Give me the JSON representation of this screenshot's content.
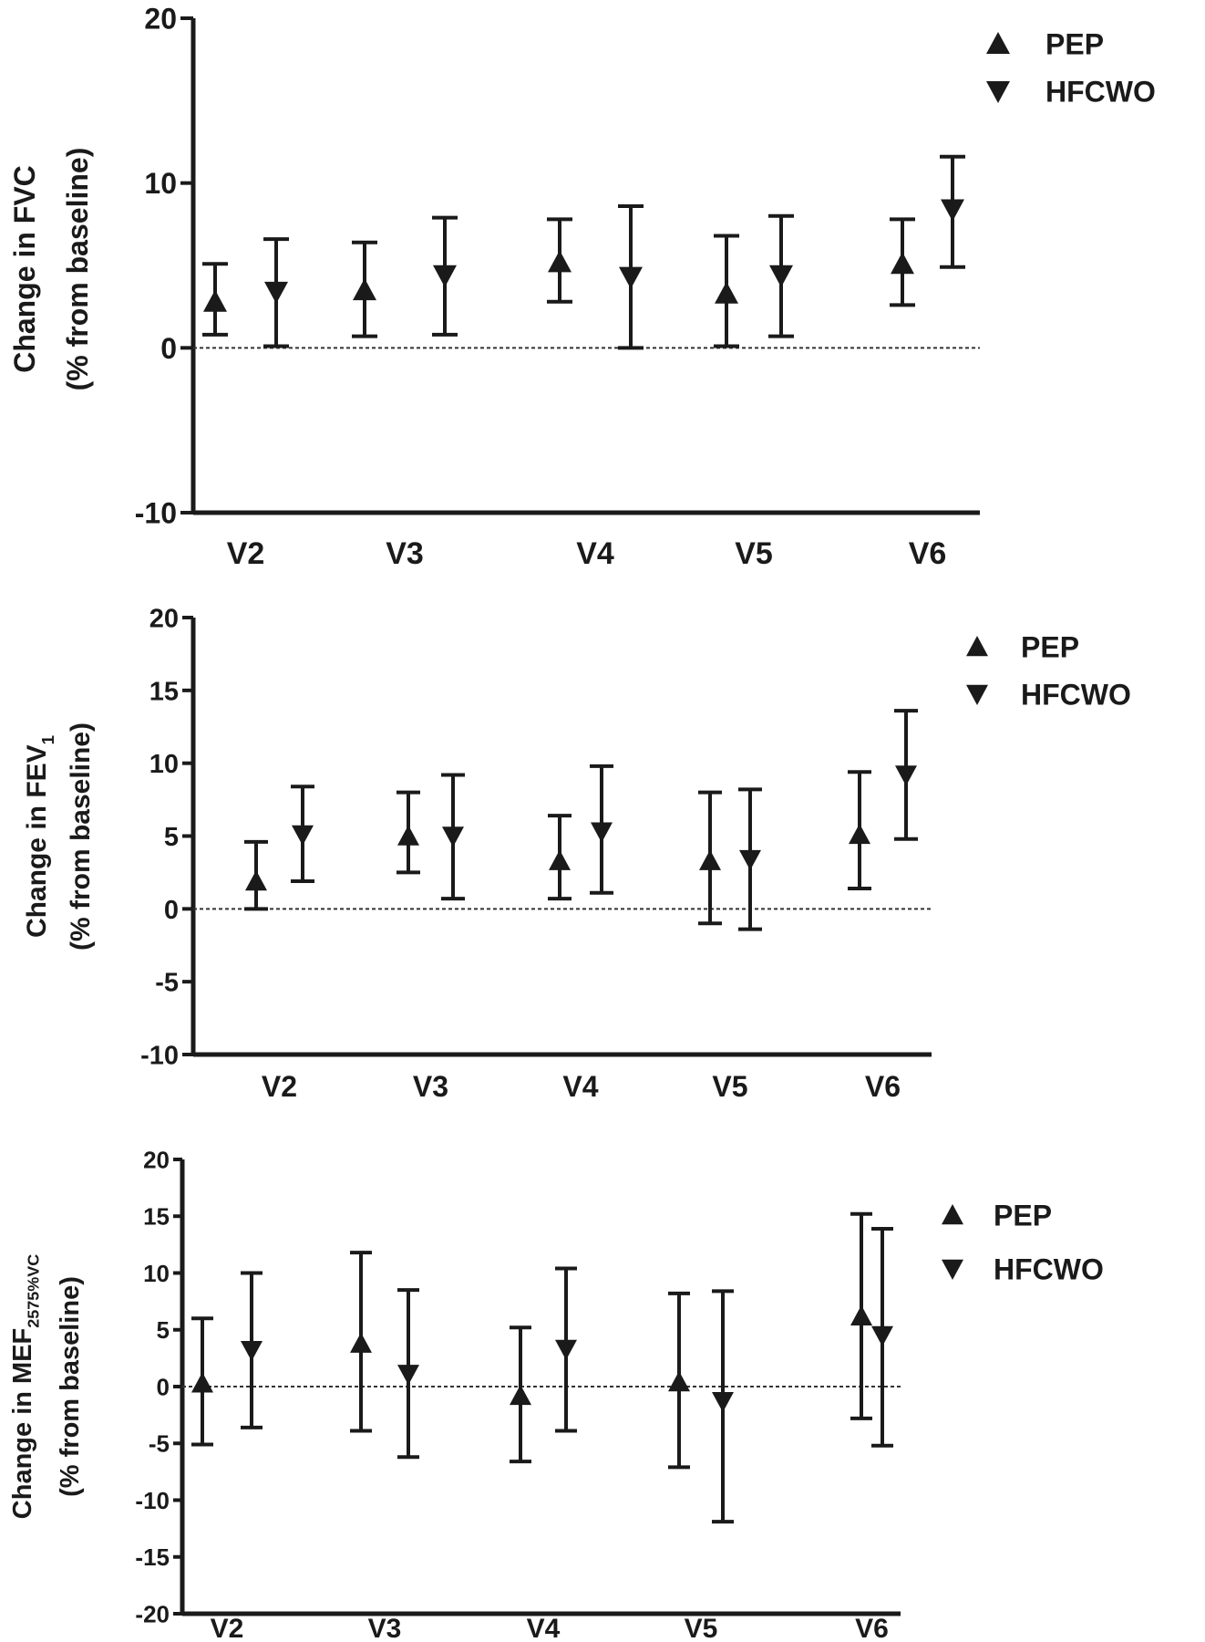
{
  "colors": {
    "ink": "#1a1a1a",
    "background": "#ffffff"
  },
  "chart_data": [
    {
      "type": "scatter",
      "title": "",
      "ylabel_line1": "Change in FVC",
      "ylabel_line1_main": "Change in  FVC",
      "ylabel_line1_sub": "",
      "ylabel_line2": "(% from baseline)",
      "xlabel": "",
      "categories": [
        "V2",
        "V3",
        "V4",
        "V5",
        "V6"
      ],
      "yticks": [
        "20",
        "10",
        "0",
        "-10"
      ],
      "ylim": [
        -10,
        20
      ],
      "zero_line": "dashed",
      "legend_position": "top-right",
      "series": [
        {
          "name": "PEP",
          "marker": "triangle-up",
          "values": [
            2.8,
            3.5,
            5.2,
            3.3,
            5.1
          ],
          "lower": [
            0.8,
            0.7,
            2.8,
            0.1,
            2.6
          ],
          "upper": [
            5.1,
            6.4,
            7.8,
            6.8,
            7.8
          ]
        },
        {
          "name": "HFCWO",
          "marker": "triangle-down",
          "values": [
            3.4,
            4.4,
            4.3,
            4.4,
            8.4
          ],
          "lower": [
            0.1,
            0.8,
            0.0,
            0.7,
            4.9
          ],
          "upper": [
            6.6,
            7.9,
            8.6,
            8.0,
            11.6
          ]
        }
      ]
    },
    {
      "type": "scatter",
      "title": "",
      "ylabel_line1": "Change in FEV1",
      "ylabel_line1_main": "Change in  FEV",
      "ylabel_line1_sub": "1",
      "ylabel_line2": "(% from baseline)",
      "xlabel": "",
      "categories": [
        "V2",
        "V3",
        "V4",
        "V5",
        "V6"
      ],
      "yticks": [
        "20",
        "15",
        "10",
        "5",
        "0",
        "-5",
        "-10"
      ],
      "ylim": [
        -10,
        20
      ],
      "zero_line": "dashed",
      "legend_position": "top-right",
      "series": [
        {
          "name": "PEP",
          "marker": "triangle-up",
          "values": [
            1.9,
            5.0,
            3.3,
            3.3,
            5.1
          ],
          "lower": [
            0.0,
            2.5,
            0.7,
            -1.0,
            1.4
          ],
          "upper": [
            4.6,
            8.0,
            6.4,
            8.0,
            9.4
          ]
        },
        {
          "name": "HFCWO",
          "marker": "triangle-down",
          "values": [
            5.1,
            5.0,
            5.3,
            3.4,
            9.2
          ],
          "lower": [
            1.9,
            0.7,
            1.1,
            -1.4,
            4.8
          ],
          "upper": [
            8.4,
            9.2,
            9.8,
            8.2,
            13.6
          ]
        }
      ]
    },
    {
      "type": "scatter",
      "title": "",
      "ylabel_line1": "Change in MEF2575%VC",
      "ylabel_line1_main": "Change in  MEF",
      "ylabel_line1_sub": "2575%VC",
      "ylabel_line2": "(% from baseline)",
      "xlabel": "",
      "categories": [
        "V2",
        "V3",
        "V4",
        "V5",
        "V6"
      ],
      "yticks": [
        "20",
        "15",
        "10",
        "5",
        "0",
        "-5",
        "-10",
        "-15",
        "-20"
      ],
      "ylim": [
        -20,
        20
      ],
      "zero_line": "dashed",
      "legend_position": "top-right",
      "series": [
        {
          "name": "PEP",
          "marker": "triangle-up",
          "values": [
            0.3,
            3.8,
            -0.8,
            0.4,
            6.2
          ],
          "lower": [
            -5.1,
            -3.9,
            -6.6,
            -7.1,
            -2.8
          ],
          "upper": [
            6.0,
            11.8,
            5.2,
            8.2,
            15.2
          ]
        },
        {
          "name": "HFCWO",
          "marker": "triangle-down",
          "values": [
            3.2,
            1.1,
            3.3,
            -1.3,
            4.5
          ],
          "lower": [
            -3.6,
            -6.2,
            -3.9,
            -11.9,
            -5.2
          ],
          "upper": [
            10.0,
            8.5,
            10.4,
            8.4,
            13.9
          ]
        }
      ]
    }
  ]
}
